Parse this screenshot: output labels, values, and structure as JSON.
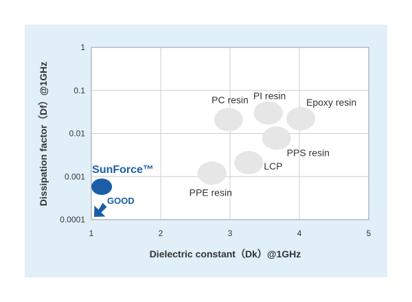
{
  "chart_data": {
    "type": "scatter",
    "title": "",
    "xlabel": "Dielectric constant（Dk）@1GHz",
    "ylabel": "Dissipation factor（Df）@1GHz",
    "x_scale": "linear",
    "y_scale": "log",
    "xlim": [
      1,
      5
    ],
    "ylim": [
      0.0001,
      1
    ],
    "x_ticks": [
      "1",
      "2",
      "3",
      "4",
      "5"
    ],
    "y_ticks": [
      "0.0001",
      "0.001",
      "0.01",
      "0.1",
      "1"
    ],
    "grid": true,
    "points": [
      {
        "label": "PC resin",
        "x": 2.98,
        "y": 0.021,
        "highlight": false
      },
      {
        "label": "PI resin",
        "x": 3.55,
        "y": 0.03,
        "highlight": false
      },
      {
        "label": "Epoxy resin",
        "x": 4.02,
        "y": 0.022,
        "highlight": false
      },
      {
        "label": "PPS resin",
        "x": 3.67,
        "y": 0.0078,
        "highlight": false
      },
      {
        "label": "LCP",
        "x": 3.27,
        "y": 0.0021,
        "highlight": false
      },
      {
        "label": "PPE resin",
        "x": 2.74,
        "y": 0.0012,
        "highlight": false
      },
      {
        "label": "SunForce™",
        "x": 1.15,
        "y": 0.00058,
        "highlight": true
      }
    ],
    "annotation": {
      "text": "GOOD",
      "direction": "down-left"
    },
    "colors": {
      "panel": "#e1eff9",
      "plot": "#ffffff",
      "grid": "#cccccc",
      "point": "#e6e6e6",
      "highlight": "#1b5ea8"
    }
  }
}
